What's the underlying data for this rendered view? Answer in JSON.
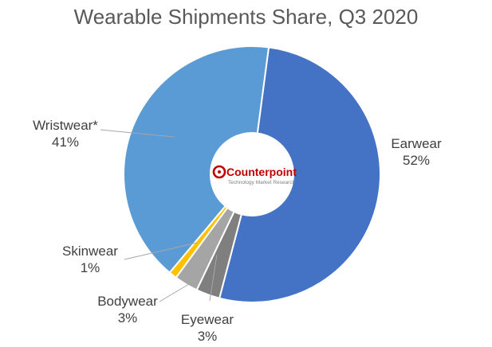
{
  "chart_data": {
    "type": "pie",
    "title": "Wearable Shipments Share, Q3 2020",
    "slices": [
      {
        "name": "Earwear",
        "value": 52,
        "value_label": "52%",
        "color": "#4472c4"
      },
      {
        "name": "Eyewear",
        "value": 3,
        "value_label": "3%",
        "color": "#7f7f7f"
      },
      {
        "name": "Bodywear",
        "value": 3,
        "value_label": "3%",
        "color": "#a5a5a5"
      },
      {
        "name": "Skinwear",
        "value": 1,
        "value_label": "1%",
        "color": "#ffc000"
      },
      {
        "name": "Wristwear*",
        "value": 41,
        "value_label": "41%",
        "color": "#5b9bd5"
      }
    ],
    "legend": "none"
  },
  "logo": {
    "name": "Counterpoint",
    "tagline": "Technology Market Research"
  }
}
